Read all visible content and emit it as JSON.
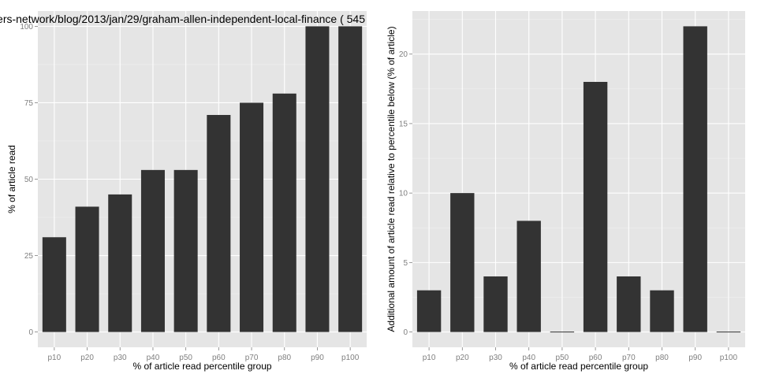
{
  "chart_data": [
    {
      "type": "bar",
      "title": "ers-network/blog/2013/jan/29/graham-allen-independent-local-finance ( 545",
      "xlabel": "% of article read percentile group",
      "ylabel": "% of article read",
      "categories": [
        "p10",
        "p20",
        "p30",
        "p40",
        "p50",
        "p60",
        "p70",
        "p80",
        "p90",
        "p100"
      ],
      "values": [
        31,
        41,
        45,
        53,
        53,
        71,
        75,
        78,
        100,
        100
      ],
      "ylim": [
        -5,
        105
      ],
      "yticks": [
        0,
        25,
        50,
        75,
        100
      ],
      "grid": true,
      "bar_color": "#333333",
      "panel_color": "#e5e5e5"
    },
    {
      "type": "bar",
      "title": "",
      "xlabel": "% of article read percentile group",
      "ylabel": "Additional amount of article read relative to percentile below (% of article)",
      "categories": [
        "p10",
        "p20",
        "p30",
        "p40",
        "p50",
        "p60",
        "p70",
        "p80",
        "p90",
        "p100"
      ],
      "values": [
        3,
        10,
        4,
        8,
        0,
        18,
        4,
        3,
        22,
        0
      ],
      "ylim": [
        -1.1,
        23.1
      ],
      "yticks": [
        0,
        5,
        10,
        15,
        20
      ],
      "grid": true,
      "bar_color": "#333333",
      "panel_color": "#e5e5e5"
    }
  ]
}
